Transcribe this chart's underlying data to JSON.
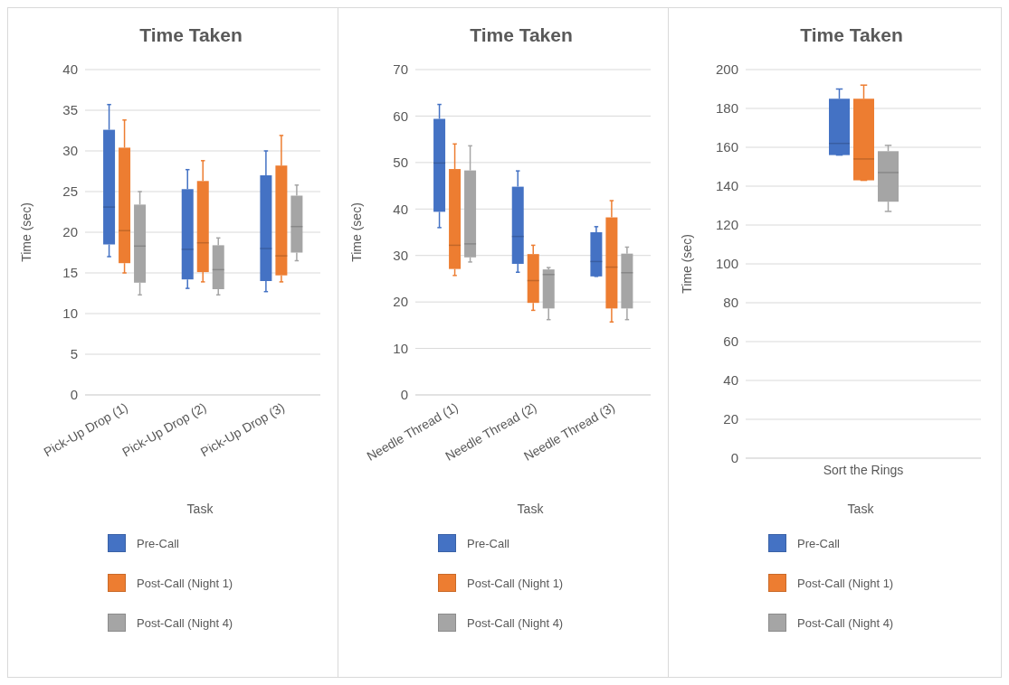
{
  "chart_data": [
    {
      "type": "box",
      "title": "Time Taken",
      "xlabel": "Task",
      "ylabel": "Time (sec)",
      "categories": [
        "Pick-Up Drop (1)",
        "Pick-Up Drop (2)",
        "Pick-Up Drop (3)"
      ],
      "ylim": [
        0,
        40
      ],
      "yticks": [
        0,
        5,
        10,
        15,
        20,
        25,
        30,
        35,
        40
      ],
      "grid": "y",
      "legend": "bottom",
      "series": [
        {
          "name": "Pre-Call",
          "color": "#4472c4",
          "boxes": [
            {
              "low": 17.0,
              "q1": 18.5,
              "median": 23.1,
              "q3": 32.6,
              "high": 35.7
            },
            {
              "low": 13.1,
              "q1": 14.2,
              "median": 17.9,
              "q3": 25.3,
              "high": 27.7
            },
            {
              "low": 12.7,
              "q1": 14.0,
              "median": 18.0,
              "q3": 27.0,
              "high": 30.0
            }
          ]
        },
        {
          "name": "Post-Call (Night 1)",
          "color": "#ed7d31",
          "boxes": [
            {
              "low": 15.0,
              "q1": 16.2,
              "median": 20.2,
              "q3": 30.4,
              "high": 33.8
            },
            {
              "low": 13.9,
              "q1": 15.1,
              "median": 18.7,
              "q3": 26.3,
              "high": 28.8
            },
            {
              "low": 13.9,
              "q1": 14.7,
              "median": 17.1,
              "q3": 28.2,
              "high": 31.9
            }
          ]
        },
        {
          "name": "Post-Call (Night 4)",
          "color": "#a5a5a5",
          "boxes": [
            {
              "low": 12.3,
              "q1": 13.8,
              "median": 18.3,
              "q3": 23.4,
              "high": 25.0
            },
            {
              "low": 12.3,
              "q1": 13.0,
              "median": 15.4,
              "q3": 18.4,
              "high": 19.3
            },
            {
              "low": 16.5,
              "q1": 17.5,
              "median": 20.7,
              "q3": 24.5,
              "high": 25.8
            }
          ]
        }
      ]
    },
    {
      "type": "box",
      "title": "Time Taken",
      "xlabel": "Task",
      "ylabel": "Time (sec)",
      "categories": [
        "Needle Thread (1)",
        "Needle Thread (2)",
        "Needle Thread (3)"
      ],
      "ylim": [
        0,
        70
      ],
      "yticks": [
        0,
        10,
        20,
        30,
        40,
        50,
        60,
        70
      ],
      "grid": "y",
      "legend": "bottom",
      "series": [
        {
          "name": "Pre-Call",
          "color": "#4472c4",
          "boxes": [
            {
              "low": 36.0,
              "q1": 39.4,
              "median": 49.9,
              "q3": 59.4,
              "high": 62.5
            },
            {
              "low": 26.4,
              "q1": 28.2,
              "median": 34.1,
              "q3": 44.8,
              "high": 48.2
            },
            {
              "low": 25.5,
              "q1": 25.5,
              "median": 28.7,
              "q3": 35.0,
              "high": 36.2
            }
          ]
        },
        {
          "name": "Post-Call (Night 1)",
          "color": "#ed7d31",
          "boxes": [
            {
              "low": 25.7,
              "q1": 27.1,
              "median": 32.2,
              "q3": 48.6,
              "high": 54.0
            },
            {
              "low": 18.2,
              "q1": 19.8,
              "median": 24.6,
              "q3": 30.3,
              "high": 32.2
            },
            {
              "low": 15.7,
              "q1": 18.6,
              "median": 27.5,
              "q3": 38.2,
              "high": 41.8
            }
          ]
        },
        {
          "name": "Post-Call (Night 4)",
          "color": "#a5a5a5",
          "boxes": [
            {
              "low": 28.6,
              "q1": 29.6,
              "median": 32.5,
              "q3": 48.3,
              "high": 53.6
            },
            {
              "low": 16.2,
              "q1": 18.6,
              "median": 25.9,
              "q3": 27.0,
              "high": 27.4
            },
            {
              "low": 16.2,
              "q1": 18.6,
              "median": 26.3,
              "q3": 30.4,
              "high": 31.8
            }
          ]
        }
      ]
    },
    {
      "type": "box",
      "title": "Time Taken",
      "xlabel": "Task",
      "ylabel": "Time (sec)",
      "categories": [
        "Sort the Rings"
      ],
      "ylim": [
        0,
        200
      ],
      "yticks": [
        0,
        20,
        40,
        60,
        80,
        100,
        120,
        140,
        160,
        180,
        200
      ],
      "grid": "y",
      "legend": "bottom",
      "series": [
        {
          "name": "Pre-Call",
          "color": "#4472c4",
          "boxes": [
            {
              "low": 156,
              "q1": 156,
              "median": 162,
              "q3": 185,
              "high": 190
            }
          ]
        },
        {
          "name": "Post-Call (Night 1)",
          "color": "#ed7d31",
          "boxes": [
            {
              "low": 143,
              "q1": 143,
              "median": 154,
              "q3": 185,
              "high": 192
            }
          ]
        },
        {
          "name": "Post-Call (Night 4)",
          "color": "#a5a5a5",
          "boxes": [
            {
              "low": 127,
              "q1": 132,
              "median": 147,
              "q3": 158,
              "high": 161
            }
          ]
        }
      ]
    }
  ]
}
